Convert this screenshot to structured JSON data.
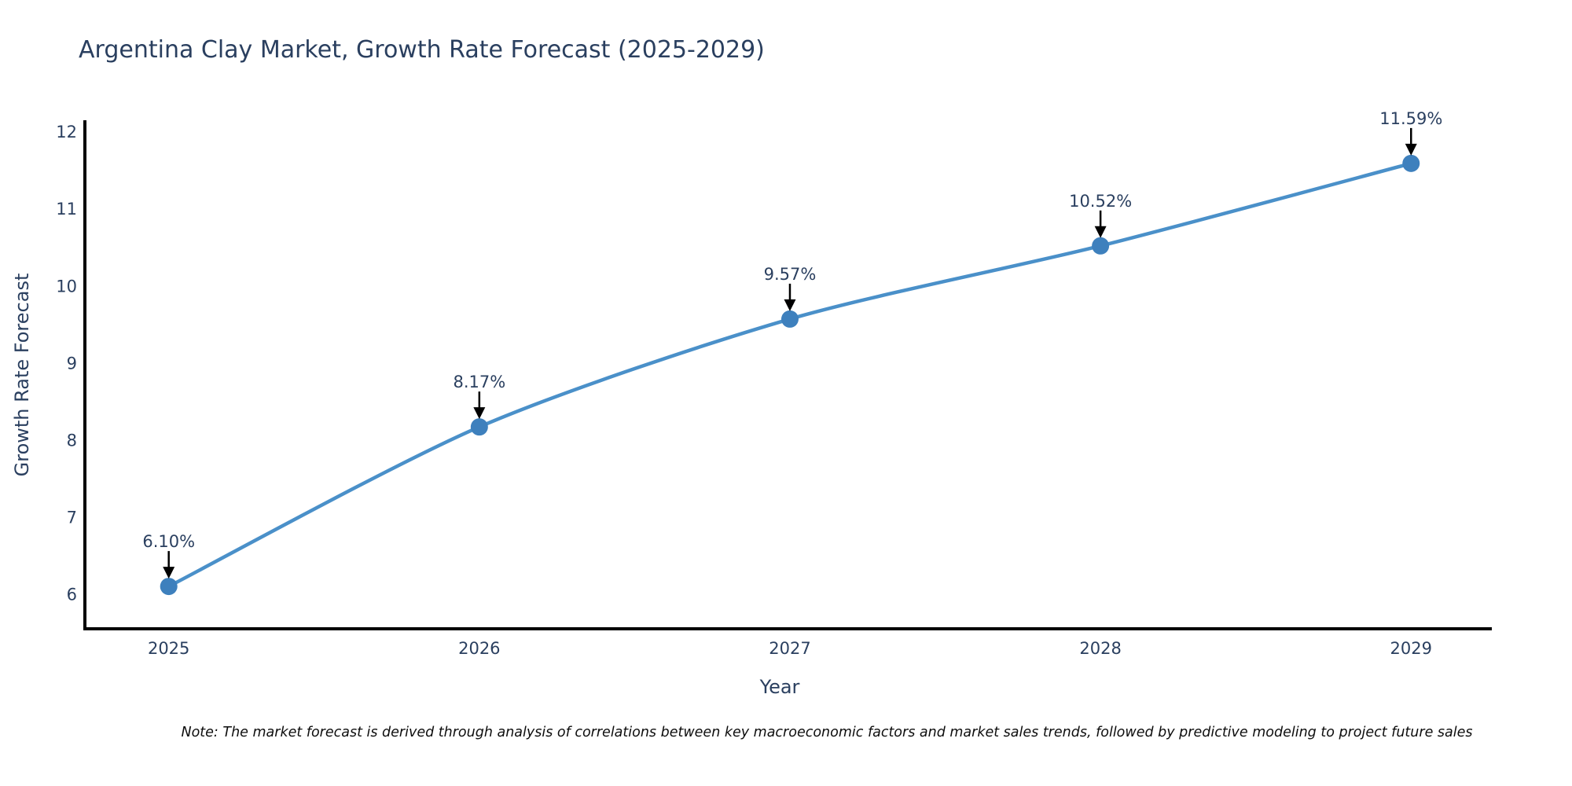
{
  "page": {
    "note": "Note: The market forecast is derived through analysis of correlations between key macroeconomic factors and market sales trends, followed by predictive modeling to project future sales"
  },
  "chart_data": {
    "type": "line",
    "title": "Argentina Clay Market, Growth Rate Forecast (2025-2029)",
    "xlabel": "Year",
    "ylabel": "Growth Rate Forecast",
    "x": [
      2025,
      2026,
      2027,
      2028,
      2029
    ],
    "series": [
      {
        "name": "Growth Rate Forecast",
        "values": [
          6.1,
          8.17,
          9.57,
          10.52,
          11.59
        ],
        "point_labels": [
          "6.10%",
          "8.17%",
          "9.57%",
          "10.52%",
          "11.59%"
        ]
      }
    ],
    "xlim": [
      2024.73,
      2029.26
    ],
    "ylim": [
      5.55,
      12.15
    ],
    "yticks": [
      6,
      7,
      8,
      9,
      10,
      11,
      12
    ],
    "grid": false,
    "legend": "none",
    "colors": {
      "line": "#4a90c9",
      "marker": "#3e80bd",
      "axis": "#000000",
      "text": "#2a3f5f",
      "arrow": "#000000"
    }
  }
}
